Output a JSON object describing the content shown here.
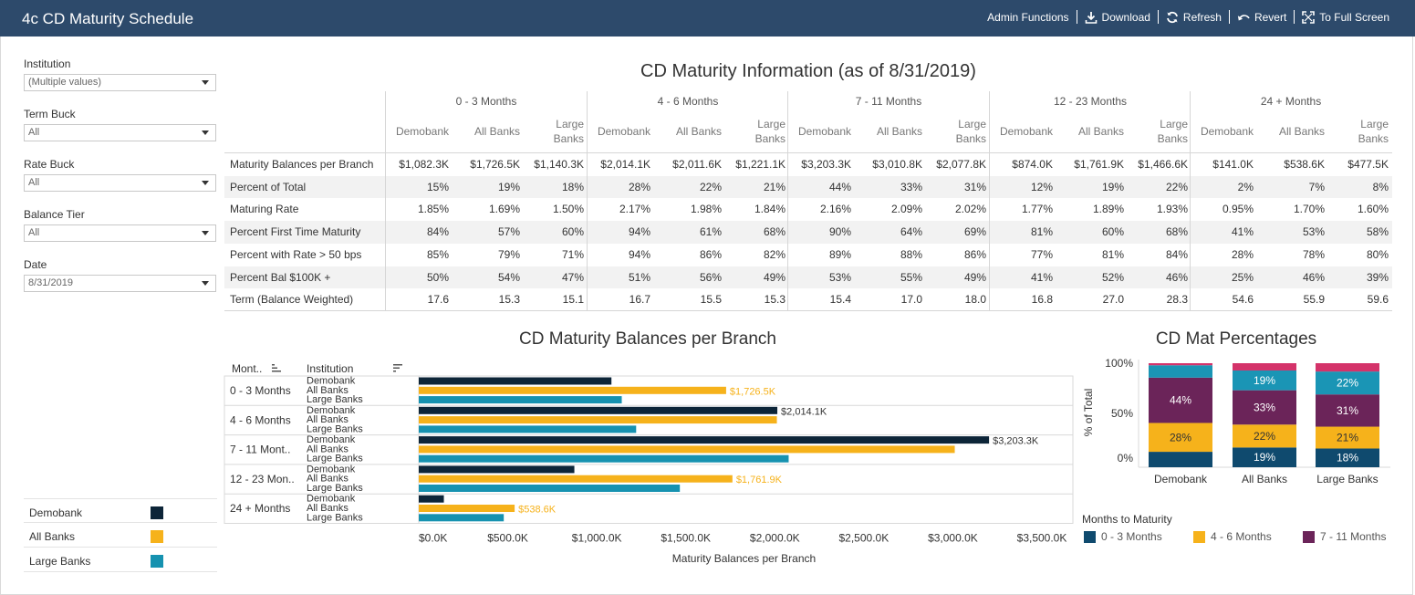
{
  "app": {
    "title": "4c CD Maturity Schedule"
  },
  "toolbar": {
    "admin": "Admin Functions",
    "download": "Download",
    "refresh": "Refresh",
    "revert": "Revert",
    "fullscreen": "To Full Screen"
  },
  "filters": [
    {
      "label": "Institution",
      "value": "(Multiple values)"
    },
    {
      "label": "Term Buck",
      "value": "All"
    },
    {
      "label": "Rate Buck",
      "value": "All"
    },
    {
      "label": "Balance Tier",
      "value": "All"
    },
    {
      "label": "Date",
      "value": "8/31/2019"
    }
  ],
  "colors": {
    "demobank": "#0d2538",
    "allbanks": "#f6b21b",
    "largebanks": "#1692b0",
    "m03": "#0f4a6e",
    "m46": "#f6b21b",
    "m711": "#6b2459",
    "m1223": "#1a95b5",
    "m24": "#d4336a"
  },
  "legend_left": [
    "Demobank",
    "All Banks",
    "Large Banks"
  ],
  "table": {
    "title": "CD Maturity Information (as of 8/31/2019)",
    "groups": [
      "0 - 3 Months",
      "4 - 6 Months",
      "7 - 11 Months",
      "12 - 23 Months",
      "24 + Months"
    ],
    "subcols": {
      "demobank": "Demobank",
      "allbanks": "All Banks",
      "large1": "Large",
      "large2": "Banks"
    },
    "rows": [
      {
        "label": "Maturity Balances per Branch",
        "values": [
          "$1,082.3K",
          "$1,726.5K",
          "$1,140.3K",
          "$2,014.1K",
          "$2,011.6K",
          "$1,221.1K",
          "$3,203.3K",
          "$3,010.8K",
          "$2,077.8K",
          "$874.0K",
          "$1,761.9K",
          "$1,466.6K",
          "$141.0K",
          "$538.6K",
          "$477.5K"
        ]
      },
      {
        "label": "Percent of Total",
        "values": [
          "15%",
          "19%",
          "18%",
          "28%",
          "22%",
          "21%",
          "44%",
          "33%",
          "31%",
          "12%",
          "19%",
          "22%",
          "2%",
          "7%",
          "8%"
        ]
      },
      {
        "label": "Maturing Rate",
        "values": [
          "1.85%",
          "1.69%",
          "1.50%",
          "2.17%",
          "1.98%",
          "1.84%",
          "2.16%",
          "2.09%",
          "2.02%",
          "1.77%",
          "1.89%",
          "1.93%",
          "0.95%",
          "1.70%",
          "1.60%"
        ]
      },
      {
        "label": "Percent First Time Maturity",
        "values": [
          "84%",
          "57%",
          "60%",
          "94%",
          "61%",
          "68%",
          "90%",
          "64%",
          "69%",
          "81%",
          "60%",
          "68%",
          "41%",
          "53%",
          "58%"
        ]
      },
      {
        "label": "Percent with Rate > 50 bps",
        "values": [
          "85%",
          "79%",
          "71%",
          "94%",
          "86%",
          "82%",
          "89%",
          "88%",
          "86%",
          "77%",
          "81%",
          "84%",
          "28%",
          "78%",
          "80%"
        ]
      },
      {
        "label": "Percent Bal $100K +",
        "values": [
          "50%",
          "54%",
          "47%",
          "51%",
          "56%",
          "49%",
          "53%",
          "55%",
          "49%",
          "41%",
          "52%",
          "46%",
          "25%",
          "46%",
          "39%"
        ]
      },
      {
        "label": "Term (Balance Weighted)",
        "values": [
          "17.6",
          "15.3",
          "15.1",
          "16.7",
          "15.5",
          "15.3",
          "15.4",
          "17.0",
          "18.0",
          "16.8",
          "27.0",
          "28.3",
          "54.6",
          "55.9",
          "59.6"
        ]
      }
    ]
  },
  "bar_chart": {
    "title": "CD Maturity Balances per Branch",
    "col_month": "Mont..",
    "col_institution": "Institution",
    "xlabel": "Maturity Balances per Branch",
    "categories": [
      "0 - 3 Months",
      "4 - 6 Months",
      "7 - 11 Mont..",
      "12 - 23 Mon..",
      "24 + Months"
    ],
    "institutions": [
      "Demobank",
      "All Banks",
      "Large Banks"
    ],
    "series": [
      {
        "name": "Demobank",
        "values": [
          1082.3,
          2014.1,
          3203.3,
          874.0,
          141.0
        ]
      },
      {
        "name": "All Banks",
        "values": [
          1726.5,
          2011.6,
          3010.8,
          1761.9,
          538.6
        ]
      },
      {
        "name": "Large Banks",
        "values": [
          1140.3,
          1221.1,
          2077.8,
          1466.6,
          477.5
        ]
      }
    ],
    "data_labels": [
      {
        "group": 0,
        "series": 1,
        "text": "$1,726.5K"
      },
      {
        "group": 1,
        "series": 0,
        "text": "$2,014.1K"
      },
      {
        "group": 2,
        "series": 0,
        "text": "$3,203.3K"
      },
      {
        "group": 3,
        "series": 1,
        "text": "$1,761.9K"
      },
      {
        "group": 4,
        "series": 1,
        "text": "$538.6K"
      }
    ],
    "ticks": [
      0,
      500,
      1000,
      1500,
      2000,
      2500,
      3000,
      3500
    ],
    "tick_labels": [
      "$0.0K",
      "$500.0K",
      "$1,000.0K",
      "$1,500.0K",
      "$2,000.0K",
      "$2,500.0K",
      "$3,000.0K",
      "$3,500.0K"
    ],
    "xmax": 3600
  },
  "stacked_chart": {
    "title": "CD Mat Percentages",
    "ylabel": "% of Total",
    "yticks": [
      "100%",
      "50%",
      "0%"
    ],
    "categories": [
      "Demobank",
      "All Banks",
      "Large Banks"
    ],
    "segments": [
      {
        "name": "0 - 3 Months",
        "values": [
          15,
          19,
          18
        ]
      },
      {
        "name": "4 - 6 Months",
        "values": [
          28,
          22,
          21
        ]
      },
      {
        "name": "7 - 11 Months",
        "values": [
          44,
          33,
          31
        ]
      },
      {
        "name": "12 - 23 Months",
        "values": [
          12,
          19,
          22
        ]
      },
      {
        "name": "24 + Months",
        "values": [
          2,
          7,
          8
        ]
      }
    ],
    "segment_labels": [
      [
        "",
        "28%",
        "44%",
        "",
        ""
      ],
      [
        "19%",
        "22%",
        "33%",
        "19%",
        ""
      ],
      [
        "18%",
        "21%",
        "31%",
        "22%",
        ""
      ]
    ],
    "legend_title": "Months to Maturity",
    "legend": [
      "0 - 3 Months",
      "4 - 6 Months",
      "7 - 11 Months"
    ]
  }
}
